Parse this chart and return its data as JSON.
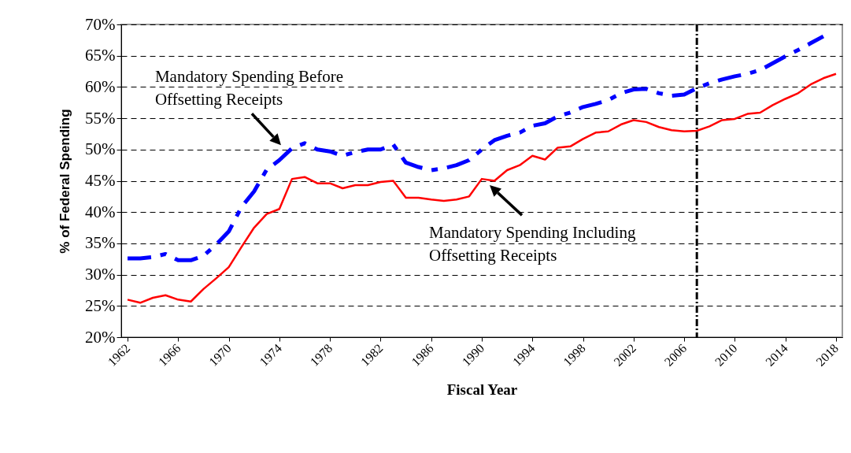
{
  "chart_data": {
    "type": "line",
    "xlabel": "Fiscal Year",
    "ylabel": "% of Federal Spending",
    "x": [
      1962,
      1963,
      1964,
      1965,
      1966,
      1967,
      1968,
      1969,
      1970,
      1971,
      1972,
      1973,
      1974,
      1975,
      1976,
      1977,
      1978,
      1979,
      1980,
      1981,
      1982,
      1983,
      1984,
      1985,
      1986,
      1987,
      1988,
      1989,
      1990,
      1991,
      1992,
      1993,
      1994,
      1995,
      1996,
      1997,
      1998,
      1999,
      2000,
      2001,
      2002,
      2003,
      2004,
      2005,
      2006,
      2007,
      2008,
      2009,
      2010,
      2011,
      2012,
      2013,
      2014,
      2015,
      2016,
      2017,
      2018
    ],
    "series": [
      {
        "color": "#0000ff",
        "line_style": "dashed",
        "values": [
          32.6,
          32.6,
          32.8,
          33.3,
          32.3,
          32.3,
          33.0,
          34.8,
          36.9,
          40.8,
          43.3,
          46.8,
          48.3,
          50.2,
          51.0,
          50.0,
          49.7,
          49.0,
          49.6,
          50.0,
          50.0,
          50.8,
          47.9,
          47.2,
          46.7,
          47.0,
          47.5,
          48.3,
          50.0,
          51.5,
          52.2,
          52.7,
          53.8,
          54.2,
          55.3,
          55.9,
          56.8,
          57.3,
          57.9,
          59.0,
          59.6,
          59.7,
          59.0,
          58.6,
          58.8,
          59.8,
          60.6,
          61.2,
          61.7,
          62.1,
          62.7,
          63.8,
          64.9,
          65.9,
          67.0,
          68.1,
          null
        ]
      },
      {
        "color": "#ff0000",
        "line_style": "solid",
        "values": [
          26.0,
          25.5,
          26.3,
          26.7,
          26.0,
          25.7,
          27.7,
          29.4,
          31.2,
          34.4,
          37.5,
          39.7,
          40.5,
          45.3,
          45.6,
          44.6,
          44.6,
          43.8,
          44.3,
          44.3,
          44.8,
          45.0,
          42.3,
          42.3,
          42.0,
          41.8,
          42.0,
          42.5,
          45.3,
          45.0,
          46.7,
          47.5,
          49.0,
          48.4,
          50.3,
          50.5,
          51.7,
          52.7,
          52.9,
          54.0,
          54.7,
          54.4,
          53.6,
          53.1,
          52.9,
          53.0,
          53.7,
          54.7,
          54.9,
          55.7,
          55.9,
          57.1,
          58.1,
          59.0,
          60.4,
          61.4,
          62.1
        ]
      }
    ],
    "xlim": [
      1961.5,
      2018.5
    ],
    "xticks": [
      1962,
      1966,
      1970,
      1974,
      1978,
      1982,
      1986,
      1990,
      1994,
      1998,
      2002,
      2006,
      2010,
      2014,
      2018
    ],
    "ylim": [
      20,
      70
    ],
    "yticks": [
      {
        "value": 20,
        "label": "20%"
      },
      {
        "value": 25,
        "label": "25%"
      },
      {
        "value": 30,
        "label": "30%"
      },
      {
        "value": 35,
        "label": "35%"
      },
      {
        "value": 40,
        "label": "40%"
      },
      {
        "value": 45,
        "label": "45%"
      },
      {
        "value": 50,
        "label": "50%"
      },
      {
        "value": 55,
        "label": "55%"
      },
      {
        "value": 60,
        "label": "60%"
      },
      {
        "value": 65,
        "label": "65%"
      },
      {
        "value": 70,
        "label": "70%"
      }
    ],
    "grid": "y",
    "ref_lines": [
      {
        "axis": "x",
        "value": 2007,
        "color": "#000000",
        "line_style": "dashed"
      }
    ],
    "annotations": [
      {
        "text": "Mandatory Spending Before\nOffsetting Receipts",
        "x": 1975,
        "y": 50.2
      },
      {
        "text": "Mandatory Spending Including\nOffsetting Receipts",
        "x": 1990,
        "y": 45.3
      }
    ]
  }
}
